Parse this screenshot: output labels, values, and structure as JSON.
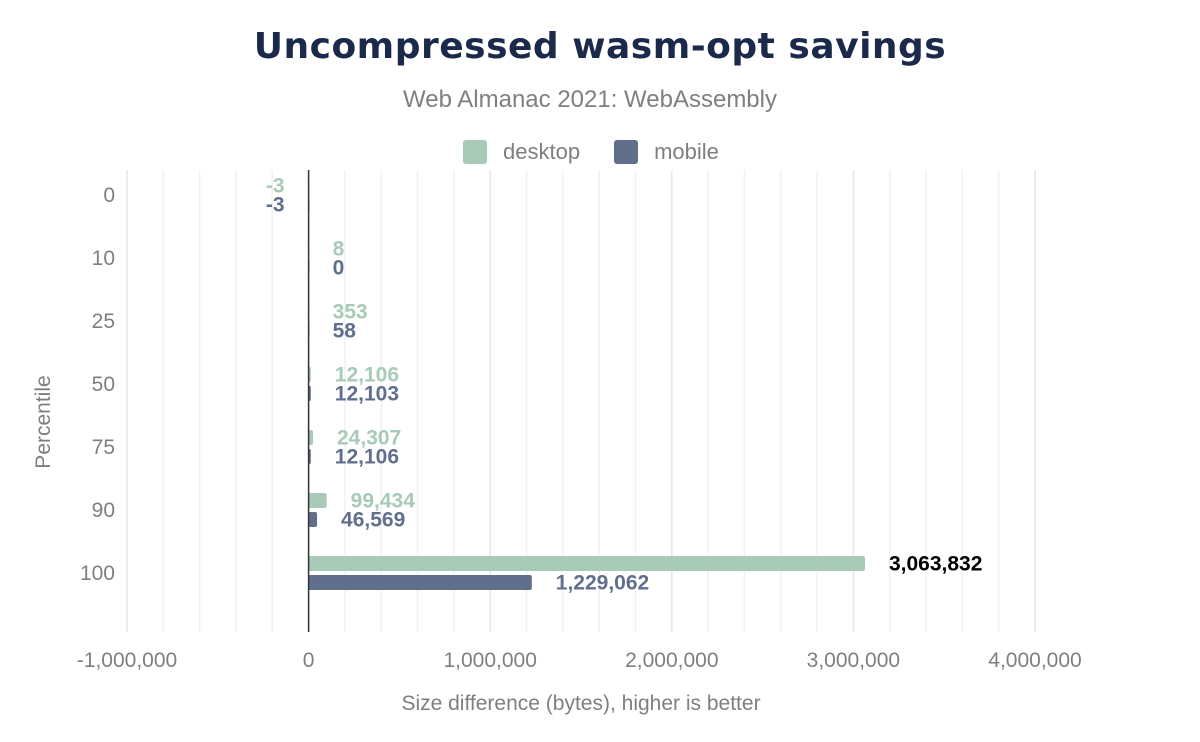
{
  "title": "Uncompressed wasm-opt savings",
  "subtitle": "Web Almanac 2021: WebAssembly",
  "colors": {
    "desktop": "#a8cab8",
    "mobile": "#5f6f8c",
    "title": "#1b2a4a",
    "axis_text": "#7f7f7f"
  },
  "legend": [
    {
      "name": "desktop",
      "color": "#a8cab8"
    },
    {
      "name": "mobile",
      "color": "#5f6f8c"
    }
  ],
  "chart_data": {
    "type": "bar",
    "orientation": "horizontal",
    "title": "Uncompressed wasm-opt savings",
    "subtitle": "Web Almanac 2021: WebAssembly",
    "xlabel": "Size difference (bytes), higher is better",
    "ylabel": "Percentile",
    "categories": [
      "0",
      "10",
      "25",
      "50",
      "75",
      "90",
      "100"
    ],
    "series": [
      {
        "name": "desktop",
        "values": [
          -3,
          8,
          353,
          12106,
          24307,
          99434,
          3063832
        ],
        "labels": [
          "-3",
          "8",
          "353",
          "12,106",
          "24,307",
          "99,434",
          "3,063,832"
        ]
      },
      {
        "name": "mobile",
        "values": [
          -3,
          0,
          58,
          12103,
          12106,
          46569,
          1229062
        ],
        "labels": [
          "-3",
          "0",
          "58",
          "12,103",
          "12,106",
          "46,569",
          "1,229,062"
        ]
      }
    ],
    "xlim": [
      -1000000,
      4000000
    ],
    "xticks": [
      -1000000,
      0,
      1000000,
      2000000,
      3000000,
      4000000
    ],
    "xtick_labels": [
      "-1,000,000",
      "0",
      "1,000,000",
      "2,000,000",
      "3,000,000",
      "4,000,000"
    ],
    "grid": true,
    "legend_position": "top"
  }
}
